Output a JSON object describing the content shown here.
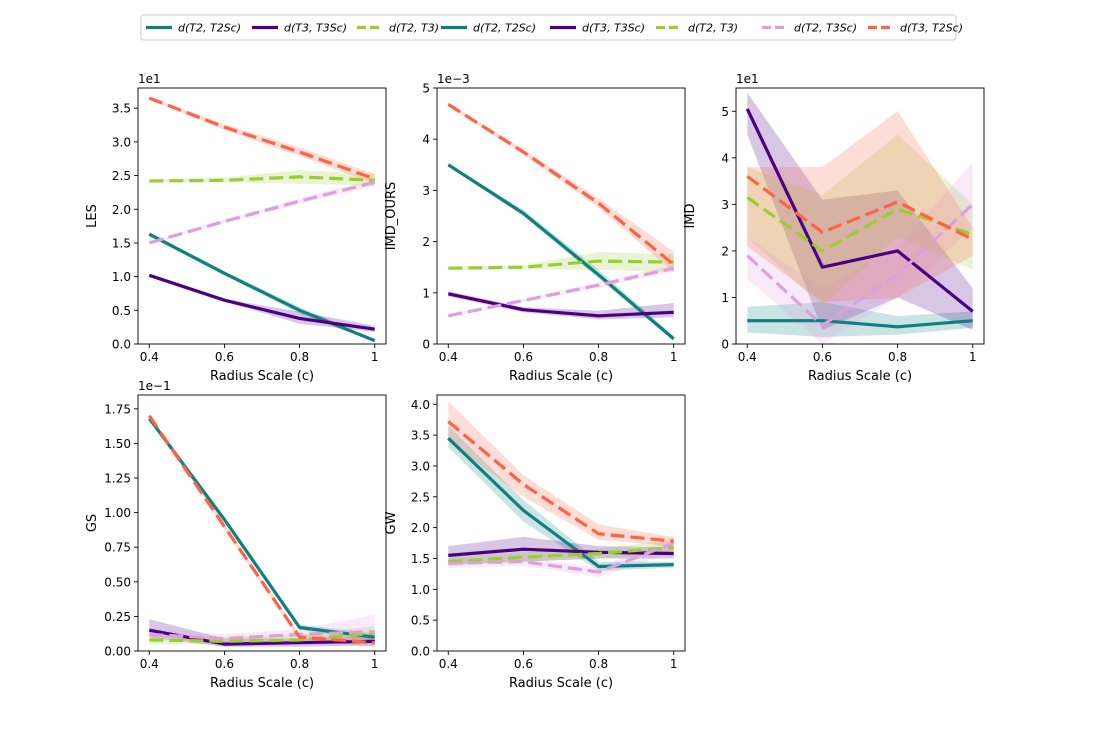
{
  "legend": {
    "entries": [
      {
        "label": "d(T2, T2Sc)",
        "series": "s_teal"
      },
      {
        "label": "d(T3, T3Sc)",
        "series": "s_purple"
      },
      {
        "label": "d(T2, T3)",
        "series": "s_green"
      },
      {
        "label": "d(T2, T2Sc)",
        "series": "s_teal"
      },
      {
        "label": "d(T3, T3Sc)",
        "series": "s_purple"
      },
      {
        "label": "d(T2, T3)",
        "series": "s_green"
      },
      {
        "label": "d(T2, T3Sc)",
        "series": "s_pink"
      },
      {
        "label": "d(T3, T2Sc)",
        "series": "s_orange"
      }
    ]
  },
  "styles": {
    "s_teal": {
      "color": "#0f7f7f",
      "dash": "solid"
    },
    "s_purple": {
      "color": "#4b0082",
      "dash": "solid"
    },
    "s_green": {
      "color": "#9acd32",
      "dash": "dashed"
    },
    "s_pink": {
      "color": "#dda0dd",
      "dash": "dashed"
    },
    "s_orange": {
      "color": "#ff6347",
      "dash": "dashed"
    }
  },
  "chart_data": [
    {
      "id": "les",
      "type": "line",
      "ylabel": "LES",
      "xlabel": "Radius Scale (c)",
      "offset_label": "1e1",
      "x": [
        0.4,
        0.6,
        0.8,
        1
      ],
      "xticks": [
        "0.4",
        "0.6",
        "0.8",
        "1"
      ],
      "ylim": [
        0,
        3.8
      ],
      "yticks": [
        0,
        0.5,
        1.0,
        1.5,
        2.0,
        2.5,
        3.0,
        3.5
      ],
      "ytick_labels": [
        "0.0",
        "0.5",
        "1.0",
        "1.5",
        "2.0",
        "2.5",
        "3.0",
        "3.5"
      ],
      "series": [
        {
          "name": "s_teal",
          "values": [
            1.63,
            1.05,
            0.5,
            0.05
          ],
          "lower": [
            1.6,
            1.02,
            0.45,
            0.03
          ],
          "upper": [
            1.66,
            1.08,
            0.55,
            0.07
          ]
        },
        {
          "name": "s_purple",
          "values": [
            1.02,
            0.65,
            0.38,
            0.22
          ],
          "lower": [
            1.0,
            0.63,
            0.3,
            0.18
          ],
          "upper": [
            1.04,
            0.67,
            0.48,
            0.27
          ]
        },
        {
          "name": "s_green",
          "values": [
            2.42,
            2.43,
            2.48,
            2.43
          ],
          "lower": [
            2.4,
            2.4,
            2.38,
            2.35
          ],
          "upper": [
            2.44,
            2.47,
            2.58,
            2.52
          ]
        },
        {
          "name": "s_pink",
          "values": [
            1.5,
            1.82,
            2.12,
            2.4
          ],
          "lower": [
            1.48,
            1.79,
            2.08,
            2.35
          ],
          "upper": [
            1.52,
            1.85,
            2.16,
            2.45
          ]
        },
        {
          "name": "s_orange",
          "values": [
            3.65,
            3.22,
            2.85,
            2.45
          ],
          "lower": [
            3.63,
            3.18,
            2.79,
            2.38
          ],
          "upper": [
            3.67,
            3.26,
            2.92,
            2.52
          ]
        }
      ]
    },
    {
      "id": "imd-ours",
      "type": "line",
      "ylabel": "IMD_OURS",
      "xlabel": "Radius Scale (c)",
      "offset_label": "1e−3",
      "x": [
        0.4,
        0.6,
        0.8,
        1
      ],
      "xticks": [
        "0.4",
        "0.6",
        "0.8",
        "1"
      ],
      "ylim": [
        0,
        5
      ],
      "yticks": [
        0,
        1,
        2,
        3,
        4,
        5
      ],
      "ytick_labels": [
        "0",
        "1",
        "2",
        "3",
        "4",
        "5"
      ],
      "series": [
        {
          "name": "s_teal",
          "values": [
            3.5,
            2.55,
            1.35,
            0.1
          ],
          "lower": [
            3.47,
            2.5,
            1.28,
            0.06
          ],
          "upper": [
            3.53,
            2.62,
            1.45,
            0.16
          ]
        },
        {
          "name": "s_purple",
          "values": [
            0.98,
            0.67,
            0.55,
            0.62
          ],
          "lower": [
            0.93,
            0.62,
            0.48,
            0.52
          ],
          "upper": [
            1.03,
            0.72,
            0.65,
            0.8
          ]
        },
        {
          "name": "s_green",
          "values": [
            1.48,
            1.5,
            1.62,
            1.6
          ],
          "lower": [
            1.45,
            1.46,
            1.45,
            1.4
          ],
          "upper": [
            1.51,
            1.54,
            1.8,
            1.75
          ]
        },
        {
          "name": "s_pink",
          "values": [
            0.55,
            0.85,
            1.15,
            1.48
          ],
          "lower": [
            0.52,
            0.82,
            1.1,
            1.42
          ],
          "upper": [
            0.58,
            0.88,
            1.2,
            1.55
          ]
        },
        {
          "name": "s_orange",
          "values": [
            4.68,
            3.75,
            2.75,
            1.55
          ],
          "lower": [
            4.65,
            3.7,
            2.66,
            1.4
          ],
          "upper": [
            4.71,
            3.8,
            2.85,
            1.8
          ]
        }
      ]
    },
    {
      "id": "imd",
      "type": "line",
      "ylabel": "IMD",
      "xlabel": "Radius Scale (c)",
      "offset_label": "1e1",
      "x": [
        0.4,
        0.6,
        0.8,
        1
      ],
      "xticks": [
        "0.4",
        "0.6",
        "0.8",
        "1"
      ],
      "ylim": [
        0,
        5.5
      ],
      "yticks": [
        0,
        1,
        2,
        3,
        4,
        5
      ],
      "ytick_labels": [
        "0",
        "1",
        "2",
        "3",
        "4",
        "5"
      ],
      "series": [
        {
          "name": "s_teal",
          "values": [
            0.5,
            0.5,
            0.37,
            0.5
          ],
          "lower": [
            0.25,
            0.15,
            0.2,
            0.35
          ],
          "upper": [
            0.8,
            0.9,
            0.6,
            0.7
          ]
        },
        {
          "name": "s_purple",
          "values": [
            5.05,
            1.65,
            2.0,
            0.7
          ],
          "lower": [
            4.5,
            0.3,
            1.0,
            0.3
          ],
          "upper": [
            5.4,
            3.1,
            3.3,
            1.2
          ]
        },
        {
          "name": "s_green",
          "values": [
            3.15,
            2.0,
            2.9,
            2.35
          ],
          "lower": [
            2.3,
            0.8,
            2.3,
            1.6
          ],
          "upper": [
            3.8,
            3.2,
            4.5,
            3.0
          ]
        },
        {
          "name": "s_pink",
          "values": [
            1.9,
            0.4,
            1.5,
            3.0
          ],
          "lower": [
            1.4,
            0.0,
            1.0,
            2.5
          ],
          "upper": [
            2.3,
            1.2,
            2.1,
            3.9
          ]
        },
        {
          "name": "s_orange",
          "values": [
            3.6,
            2.4,
            3.05,
            2.25
          ],
          "lower": [
            2.1,
            0.9,
            1.0,
            1.9
          ],
          "upper": [
            3.8,
            3.8,
            5.0,
            2.5
          ]
        }
      ]
    },
    {
      "id": "gs",
      "type": "line",
      "ylabel": "GS",
      "xlabel": "Radius Scale (c)",
      "offset_label": "1e−1",
      "x": [
        0.4,
        0.6,
        0.8,
        1
      ],
      "xticks": [
        "0.4",
        "0.6",
        "0.8",
        "1"
      ],
      "ylim": [
        0,
        1.85
      ],
      "yticks": [
        0,
        0.25,
        0.5,
        0.75,
        1.0,
        1.25,
        1.5,
        1.75
      ],
      "ytick_labels": [
        "0.00",
        "0.25",
        "0.50",
        "0.75",
        "1.00",
        "1.25",
        "1.50",
        "1.75"
      ],
      "series": [
        {
          "name": "s_teal",
          "values": [
            1.68,
            0.95,
            0.17,
            0.1
          ],
          "lower": [
            1.67,
            0.93,
            0.15,
            0.07
          ],
          "upper": [
            1.69,
            0.97,
            0.19,
            0.13
          ]
        },
        {
          "name": "s_purple",
          "values": [
            0.15,
            0.05,
            0.06,
            0.07
          ],
          "lower": [
            0.1,
            0.03,
            0.03,
            0.04
          ],
          "upper": [
            0.23,
            0.09,
            0.09,
            0.11
          ]
        },
        {
          "name": "s_green",
          "values": [
            0.08,
            0.07,
            0.08,
            0.13
          ],
          "lower": [
            0.05,
            0.05,
            0.05,
            0.08
          ],
          "upper": [
            0.11,
            0.1,
            0.12,
            0.18
          ]
        },
        {
          "name": "s_pink",
          "values": [
            0.12,
            0.09,
            0.12,
            0.14
          ],
          "lower": [
            0.08,
            0.06,
            0.08,
            0.05
          ],
          "upper": [
            0.16,
            0.12,
            0.16,
            0.26
          ]
        },
        {
          "name": "s_orange",
          "values": [
            1.7,
            0.9,
            0.1,
            0.06
          ],
          "lower": [
            1.69,
            0.88,
            0.08,
            0.03
          ],
          "upper": [
            1.71,
            0.92,
            0.12,
            0.09
          ]
        }
      ]
    },
    {
      "id": "gw",
      "type": "line",
      "ylabel": "GW",
      "xlabel": "Radius Scale (c)",
      "offset_label": "",
      "x": [
        0.4,
        0.6,
        0.8,
        1
      ],
      "xticks": [
        "0.4",
        "0.6",
        "0.8",
        "1"
      ],
      "ylim": [
        0,
        4.15
      ],
      "yticks": [
        0,
        0.5,
        1.0,
        1.5,
        2.0,
        2.5,
        3.0,
        3.5,
        4.0
      ],
      "ytick_labels": [
        "0.0",
        "0.5",
        "1.0",
        "1.5",
        "2.0",
        "2.5",
        "3.0",
        "3.5",
        "4.0"
      ],
      "series": [
        {
          "name": "s_teal",
          "values": [
            3.45,
            2.28,
            1.37,
            1.4
          ],
          "lower": [
            3.3,
            2.1,
            1.3,
            1.35
          ],
          "upper": [
            3.65,
            2.45,
            1.45,
            1.45
          ]
        },
        {
          "name": "s_purple",
          "values": [
            1.55,
            1.65,
            1.6,
            1.58
          ],
          "lower": [
            1.4,
            1.45,
            1.5,
            1.5
          ],
          "upper": [
            1.7,
            1.85,
            1.7,
            1.68
          ]
        },
        {
          "name": "s_green",
          "values": [
            1.45,
            1.52,
            1.58,
            1.68
          ],
          "lower": [
            1.38,
            1.45,
            1.5,
            1.55
          ],
          "upper": [
            1.52,
            1.6,
            1.66,
            1.8
          ]
        },
        {
          "name": "s_pink",
          "values": [
            1.42,
            1.45,
            1.28,
            1.75
          ],
          "lower": [
            1.35,
            1.38,
            1.2,
            1.6
          ],
          "upper": [
            1.5,
            1.52,
            1.35,
            1.85
          ]
        },
        {
          "name": "s_orange",
          "values": [
            3.72,
            2.7,
            1.9,
            1.78
          ],
          "lower": [
            3.4,
            2.5,
            1.8,
            1.7
          ],
          "upper": [
            4.05,
            2.85,
            2.05,
            1.85
          ]
        }
      ]
    }
  ]
}
